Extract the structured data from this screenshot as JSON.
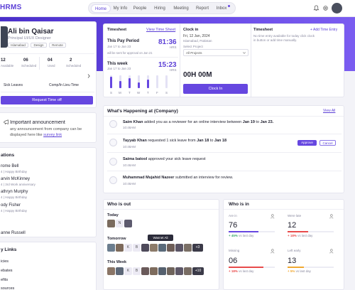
{
  "app": {
    "logo": "HRMS"
  },
  "nav": {
    "items": [
      {
        "label": "Home",
        "active": true
      },
      {
        "label": "My Info"
      },
      {
        "label": "People"
      },
      {
        "label": "Hiring"
      },
      {
        "label": "Meeting"
      },
      {
        "label": "Report"
      },
      {
        "label": "Inbox"
      }
    ]
  },
  "profile": {
    "name": "Ali bin Qaisar",
    "title": "Principal UI/UX Designer",
    "tags": [
      "Islamabad",
      "Design",
      "Remote"
    ]
  },
  "leave": {
    "stats": [
      {
        "value": "12",
        "label": "Available"
      },
      {
        "value": "06",
        "label": "Scheduled"
      },
      {
        "value": "04",
        "label": "Used"
      },
      {
        "value": "2",
        "label": "Scheduled"
      }
    ],
    "type_a": "Sick Leaves",
    "type_b": "Comp/In Lieu Time",
    "request_button": "Request Time off"
  },
  "announcement": {
    "title": "Important announcement",
    "body_line1": "any announcement from company can be",
    "body_line2": "displayed here like",
    "link": "survey link"
  },
  "celebrations": {
    "title": "ations",
    "people": [
      {
        "name": "rome Bell",
        "event": "Happy Birthday",
        "date": "4"
      },
      {
        "name": "arvin McKinney",
        "event": "3rd Work anniversary",
        "date": "4"
      },
      {
        "name": "athryn Murphy",
        "event": "Happy Birthday",
        "date": "4"
      },
      {
        "name": "ody Fisher",
        "event": "Happy Birthday",
        "date": "4"
      },
      {
        "name": "anne Russell",
        "event": "",
        "date": ""
      }
    ]
  },
  "links": {
    "title": "y Links",
    "items": [
      "icies",
      "ebates",
      "efits",
      "sources"
    ]
  },
  "timesheet": {
    "title": "Timesheet",
    "view_link": "View Time Sheet",
    "pay_period": {
      "label": "This Pay Period",
      "hours": "81:36",
      "hrs_label": "HRS",
      "range": "Jan 17 to Jan 23",
      "note": "will be sent for approval on Jan 21"
    },
    "this_week": {
      "label": "This week",
      "hours": "15:23",
      "hrs_label": "HRS",
      "range": "Jan 17 to Jan 23"
    },
    "days": [
      "S",
      "M",
      "T",
      "W",
      "T",
      "F",
      "S"
    ]
  },
  "clockin": {
    "title": "Clock in",
    "date": "Fri, 12 Jan, 2024",
    "location": "Islamabad, Pakistan",
    "select_label": "Select Project",
    "select_value": "All Projects",
    "timer": "00H 00M",
    "button": "Clock In"
  },
  "timesheet_entries": {
    "title": "Timesheet",
    "add_link": "+ Add Time Entry",
    "empty_line1": "No time entry available for today click clock",
    "empty_line2": "in button or add time manually."
  },
  "feed": {
    "title": "What's Happening at (Company)",
    "view_all": "View All",
    "items": [
      {
        "pre": "",
        "name": "Saim Khan",
        "mid": " added you as a reviewer for an online interview between ",
        "d1": "Jan 19",
        "sep": " to ",
        "d2": "Jan 23.",
        "time": "10:48AM"
      },
      {
        "pre": "",
        "name": "Tayyab Khan",
        "mid": " requested 1 sick leave from ",
        "d1": "Jan 18",
        "sep": " to ",
        "d2": "Jan 18",
        "time": "10:48AM",
        "approve": "Approve",
        "cancel": "Cancel"
      },
      {
        "pre": "",
        "name": "Saima batool",
        "mid": " approved your sick leave request",
        "d1": "",
        "sep": "",
        "d2": "",
        "time": "10:48AM"
      },
      {
        "pre": "",
        "name": "Muhammad Mujahid Nazeer",
        "mid": " submitted an interview for review.",
        "d1": "",
        "sep": "",
        "d2": "",
        "time": "10:48AM"
      }
    ]
  },
  "who_out": {
    "title": "Who is out",
    "today": "Today",
    "tomorrow": "Tomorrow",
    "tomorrow_more": "+3",
    "tooltip": "Wasnet Ali",
    "week": "This Week",
    "week_more": "+10"
  },
  "who_in": {
    "title": "Who is in",
    "stats": [
      {
        "label": "Are in",
        "value": "76",
        "change": "+ 45%",
        "compare": "vs last day",
        "fill": 0.65,
        "color": "#6647e0"
      },
      {
        "label": "Were late",
        "value": "12",
        "change": "+ 18%",
        "compare": "vs last day",
        "fill": 0.45,
        "color": "#e84b4b"
      },
      {
        "label": "Missing",
        "value": "06",
        "change": "+ 18%",
        "compare": "vs last day",
        "fill": 0.75,
        "color": "#e84b4b"
      },
      {
        "label": "Left early",
        "value": "13",
        "change": "+ 5%",
        "compare": "vs last day",
        "fill": 0.35,
        "color": "#f0a830"
      }
    ]
  }
}
